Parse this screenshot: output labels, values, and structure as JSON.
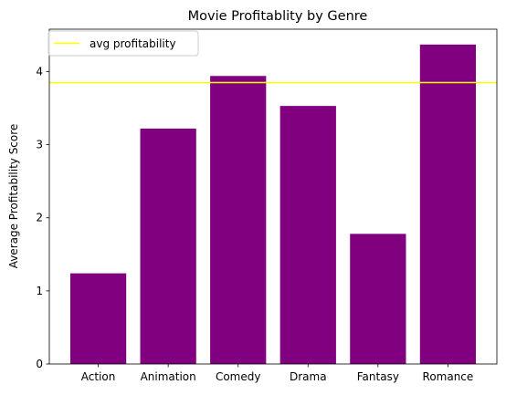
{
  "chart_data": {
    "type": "bar",
    "title": "Movie Profitablity by Genre",
    "xlabel": "",
    "ylabel": "Average Profitability Score",
    "categories": [
      "Action",
      "Animation",
      "Comedy",
      "Drama",
      "Fantasy",
      "Romance"
    ],
    "values": [
      1.24,
      3.22,
      3.94,
      3.53,
      1.78,
      4.37
    ],
    "ylim": [
      0,
      4.58
    ],
    "yticks": [
      0,
      1,
      2,
      3,
      4
    ],
    "bar_color": "#800080",
    "grid": false,
    "reference_line": {
      "label": "avg profitability",
      "value": 3.85,
      "color": "#ffff00"
    },
    "legend": {
      "position": "top-left",
      "entries": [
        "avg profitability"
      ]
    }
  }
}
